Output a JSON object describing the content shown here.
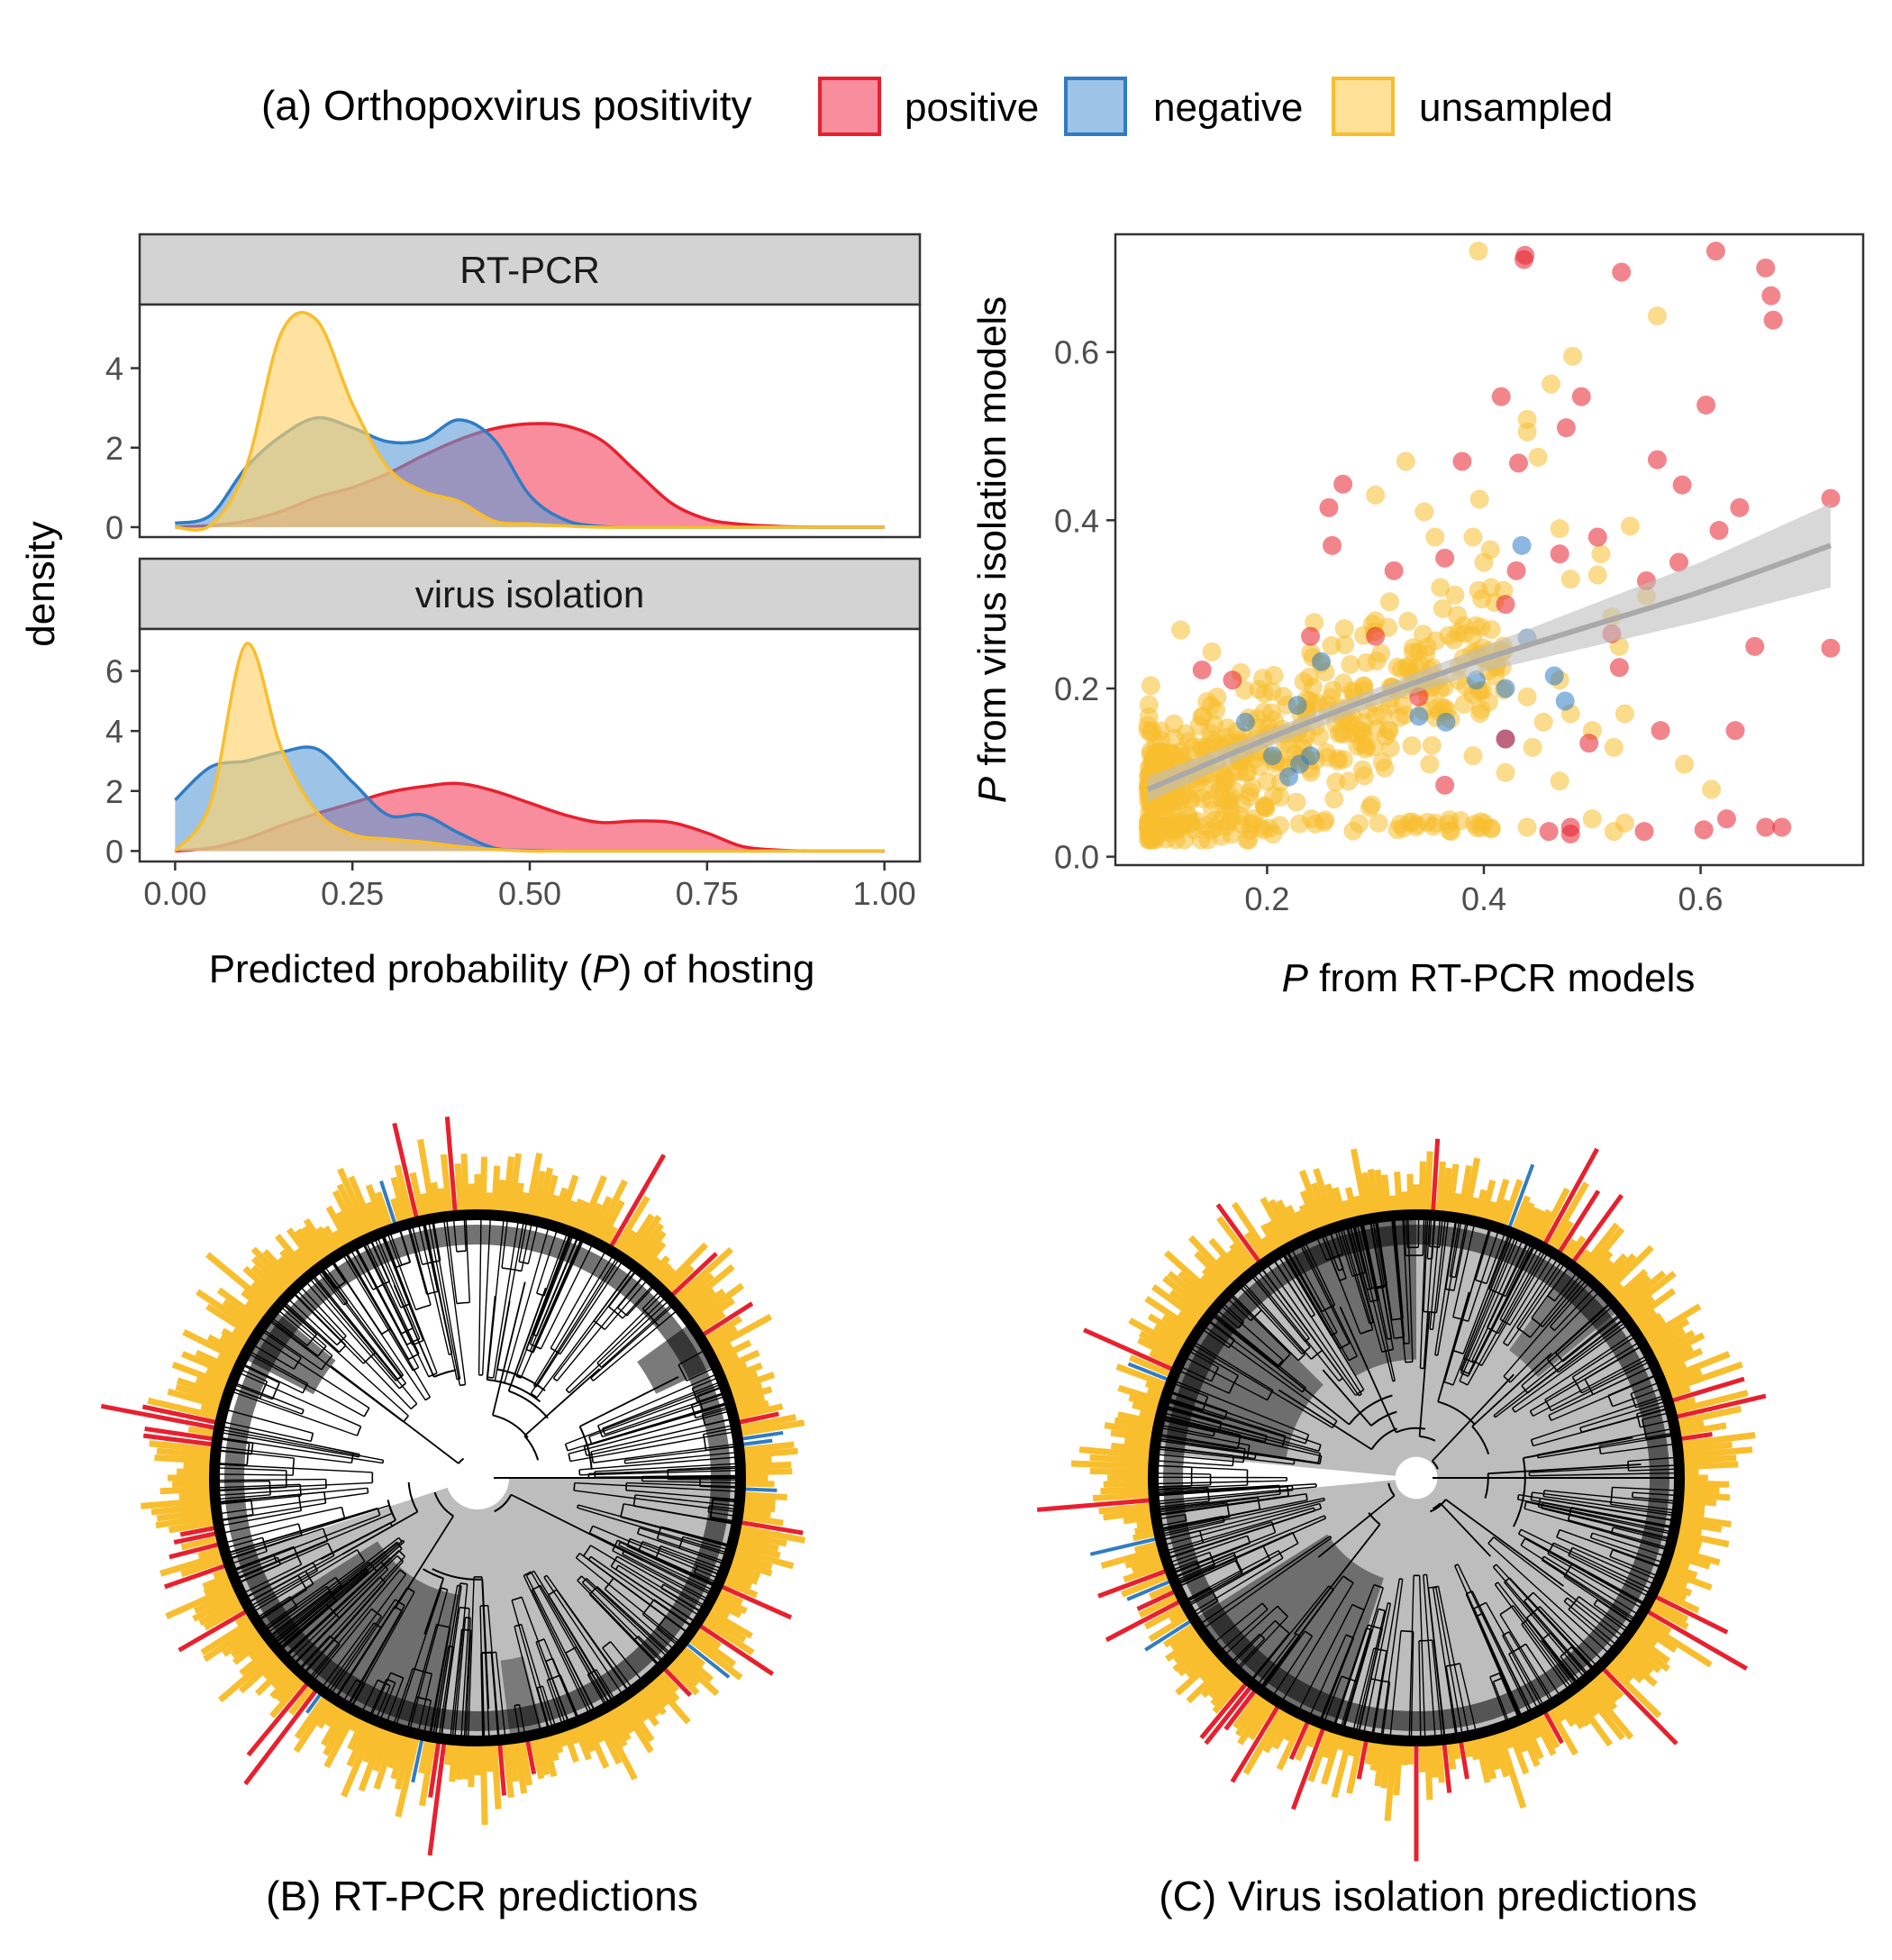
{
  "legend": {
    "title": "(a) Orthopoxvirus positivity",
    "items": [
      {
        "label": "positive",
        "fill": "#F4506A",
        "stroke": "#E8202E"
      },
      {
        "label": "negative",
        "fill": "#5B9BD5",
        "stroke": "#2F7CC4"
      },
      {
        "label": "unsampled",
        "fill": "#FFD36B",
        "stroke": "#F8BE2E"
      }
    ]
  },
  "colors": {
    "positive": "#E8202E",
    "negative": "#2F7CC4",
    "unsampled": "#F8BE2E",
    "smooth": "#A9A9A9",
    "ribbon": "#BEBEBE",
    "strip": "#D3D3D3"
  },
  "chart_data": [
    {
      "type": "area",
      "id": "density-facets",
      "xlabel_pre": "Predicted probability (",
      "xlabel_italic": "P",
      "xlabel_post": ") of hosting",
      "ylabel": "density",
      "xlim": [
        -0.05,
        1.05
      ],
      "xticks": [
        "0.00",
        "0.25",
        "0.50",
        "0.75",
        "1.00"
      ],
      "xtick_values": [
        0,
        0.25,
        0.5,
        0.75,
        1.0
      ],
      "facets": [
        {
          "strip": "RT-PCR",
          "ylim": [
            -0.25,
            5.6
          ],
          "yticks": [
            0,
            2,
            4
          ],
          "x": [
            0,
            0.05,
            0.1,
            0.15,
            0.2,
            0.25,
            0.3,
            0.35,
            0.4,
            0.45,
            0.5,
            0.55,
            0.6,
            0.65,
            0.7,
            0.75,
            0.8,
            0.85,
            0.9,
            0.95,
            1.0
          ],
          "series": [
            {
              "name": "positive",
              "values": [
                0.0,
                0.04,
                0.15,
                0.4,
                0.75,
                1.0,
                1.35,
                1.8,
                2.2,
                2.48,
                2.6,
                2.55,
                2.2,
                1.4,
                0.6,
                0.2,
                0.07,
                0.02,
                0.0,
                0.0,
                0.0
              ]
            },
            {
              "name": "negative",
              "values": [
                0.1,
                0.3,
                1.5,
                2.3,
                2.75,
                2.5,
                2.15,
                2.2,
                2.7,
                2.2,
                0.8,
                0.18,
                0.02,
                0.0,
                0.0,
                0.0,
                0.0,
                0.0,
                0.0,
                0.0,
                0.0
              ]
            },
            {
              "name": "unsampled",
              "values": [
                0.0,
                0.05,
                1.5,
                4.9,
                5.2,
                3.1,
                1.5,
                0.9,
                0.65,
                0.15,
                0.08,
                0.03,
                0.0,
                0.0,
                0.0,
                0.0,
                0.0,
                0.0,
                0.0,
                0.0,
                0.0
              ]
            }
          ]
        },
        {
          "strip": "virus isolation",
          "ylim": [
            -0.35,
            7.4
          ],
          "yticks": [
            0,
            2,
            4,
            6
          ],
          "x": [
            0,
            0.05,
            0.1,
            0.15,
            0.2,
            0.25,
            0.3,
            0.35,
            0.4,
            0.45,
            0.5,
            0.55,
            0.6,
            0.65,
            0.7,
            0.75,
            0.8,
            0.85,
            0.9,
            0.95,
            1.0
          ],
          "series": [
            {
              "name": "positive",
              "values": [
                0.0,
                0.1,
                0.4,
                0.85,
                1.25,
                1.6,
                1.95,
                2.15,
                2.25,
                2.0,
                1.6,
                1.2,
                0.95,
                1.0,
                0.95,
                0.6,
                0.15,
                0.03,
                0.0,
                0.0,
                0.0
              ]
            },
            {
              "name": "negative",
              "values": [
                1.7,
                2.8,
                3.0,
                3.3,
                3.4,
                2.3,
                1.2,
                1.2,
                0.6,
                0.1,
                0.02,
                0.0,
                0.0,
                0.0,
                0.0,
                0.0,
                0.0,
                0.0,
                0.0,
                0.0,
                0.0
              ]
            },
            {
              "name": "unsampled",
              "values": [
                0.0,
                1.6,
                6.9,
                3.4,
                1.3,
                0.55,
                0.4,
                0.3,
                0.15,
                0.05,
                0.0,
                0.0,
                0.0,
                0.0,
                0.0,
                0.0,
                0.0,
                0.0,
                0.0,
                0.0,
                0.0
              ]
            }
          ]
        }
      ]
    },
    {
      "type": "scatter",
      "id": "rtpcr-vs-isolation",
      "xlabel_italic": "P",
      "xlabel_post": " from RT-PCR models",
      "ylabel_italic": "P",
      "ylabel_post": " from virus isolation models",
      "xlim": [
        0.06,
        0.75
      ],
      "ylim": [
        -0.01,
        0.74
      ],
      "xticks": [
        0.2,
        0.4,
        0.6
      ],
      "yticks": [
        0.0,
        0.2,
        0.4,
        0.6
      ],
      "xtick_labels": [
        "0.2",
        "0.4",
        "0.6"
      ],
      "ytick_labels": [
        "0.0",
        "0.2",
        "0.4",
        "0.6"
      ],
      "smooth": {
        "x": [
          0.09,
          0.2,
          0.3,
          0.4,
          0.5,
          0.6,
          0.72
        ],
        "y": [
          0.08,
          0.14,
          0.19,
          0.235,
          0.275,
          0.315,
          0.37
        ],
        "lower": [
          0.065,
          0.13,
          0.18,
          0.22,
          0.25,
          0.28,
          0.32
        ],
        "upper": [
          0.095,
          0.15,
          0.2,
          0.25,
          0.3,
          0.35,
          0.42
        ]
      },
      "positive": [
        [
          0.437,
          0.71
        ],
        [
          0.438,
          0.715
        ],
        [
          0.614,
          0.72
        ],
        [
          0.527,
          0.695
        ],
        [
          0.66,
          0.7
        ],
        [
          0.665,
          0.667
        ],
        [
          0.667,
          0.638
        ],
        [
          0.416,
          0.547
        ],
        [
          0.49,
          0.547
        ],
        [
          0.605,
          0.537
        ],
        [
          0.476,
          0.51
        ],
        [
          0.432,
          0.468
        ],
        [
          0.38,
          0.47
        ],
        [
          0.56,
          0.472
        ],
        [
          0.583,
          0.442
        ],
        [
          0.505,
          0.38
        ],
        [
          0.27,
          0.443
        ],
        [
          0.257,
          0.415
        ],
        [
          0.26,
          0.37
        ],
        [
          0.317,
          0.34
        ],
        [
          0.47,
          0.36
        ],
        [
          0.58,
          0.35
        ],
        [
          0.636,
          0.415
        ],
        [
          0.617,
          0.388
        ],
        [
          0.55,
          0.328
        ],
        [
          0.42,
          0.3
        ],
        [
          0.72,
          0.426
        ],
        [
          0.364,
          0.355
        ],
        [
          0.3,
          0.262
        ],
        [
          0.43,
          0.34
        ],
        [
          0.34,
          0.19
        ],
        [
          0.14,
          0.222
        ],
        [
          0.168,
          0.21
        ],
        [
          0.24,
          0.262
        ],
        [
          0.518,
          0.265
        ],
        [
          0.525,
          0.225
        ],
        [
          0.65,
          0.25
        ],
        [
          0.72,
          0.248
        ],
        [
          0.364,
          0.085
        ],
        [
          0.42,
          0.14
        ],
        [
          0.497,
          0.135
        ],
        [
          0.632,
          0.15
        ],
        [
          0.563,
          0.15
        ],
        [
          0.46,
          0.03
        ],
        [
          0.48,
          0.027
        ],
        [
          0.48,
          0.035
        ],
        [
          0.548,
          0.03
        ],
        [
          0.603,
          0.032
        ],
        [
          0.624,
          0.045
        ],
        [
          0.66,
          0.035
        ],
        [
          0.675,
          0.035
        ]
      ],
      "negative": [
        [
          0.435,
          0.37
        ],
        [
          0.44,
          0.26
        ],
        [
          0.42,
          0.2
        ],
        [
          0.393,
          0.21
        ],
        [
          0.465,
          0.215
        ],
        [
          0.475,
          0.185
        ],
        [
          0.34,
          0.167
        ],
        [
          0.365,
          0.16
        ],
        [
          0.25,
          0.232
        ],
        [
          0.228,
          0.18
        ],
        [
          0.24,
          0.12
        ],
        [
          0.205,
          0.12
        ],
        [
          0.18,
          0.16
        ],
        [
          0.22,
          0.095
        ],
        [
          0.23,
          0.11
        ],
        [
          0.42,
          0.14
        ]
      ],
      "unsampled_explicit": [
        [
          0.395,
          0.72
        ],
        [
          0.56,
          0.643
        ],
        [
          0.482,
          0.595
        ],
        [
          0.462,
          0.562
        ],
        [
          0.44,
          0.52
        ],
        [
          0.44,
          0.505
        ],
        [
          0.328,
          0.47
        ],
        [
          0.45,
          0.475
        ],
        [
          0.3,
          0.43
        ],
        [
          0.396,
          0.425
        ],
        [
          0.345,
          0.41
        ],
        [
          0.355,
          0.38
        ],
        [
          0.47,
          0.39
        ],
        [
          0.535,
          0.393
        ],
        [
          0.39,
          0.38
        ],
        [
          0.406,
          0.365
        ],
        [
          0.4,
          0.35
        ],
        [
          0.508,
          0.36
        ],
        [
          0.525,
          0.25
        ],
        [
          0.55,
          0.31
        ],
        [
          0.48,
          0.33
        ],
        [
          0.505,
          0.335
        ],
        [
          0.518,
          0.285
        ],
        [
          0.36,
          0.32
        ],
        [
          0.362,
          0.295
        ],
        [
          0.33,
          0.28
        ],
        [
          0.585,
          0.11
        ],
        [
          0.61,
          0.08
        ],
        [
          0.44,
          0.19
        ],
        [
          0.455,
          0.16
        ],
        [
          0.48,
          0.17
        ],
        [
          0.47,
          0.21
        ],
        [
          0.445,
          0.13
        ],
        [
          0.47,
          0.09
        ],
        [
          0.52,
          0.13
        ],
        [
          0.5,
          0.15
        ],
        [
          0.53,
          0.17
        ],
        [
          0.39,
          0.12
        ],
        [
          0.42,
          0.1
        ],
        [
          0.35,
          0.11
        ],
        [
          0.52,
          0.03
        ],
        [
          0.53,
          0.04
        ],
        [
          0.5,
          0.045
        ],
        [
          0.44,
          0.035
        ],
        [
          0.4,
          0.04
        ],
        [
          0.37,
          0.03
        ]
      ],
      "unsampled_cloud": {
        "count": 520,
        "seed": 7
      }
    }
  ],
  "trees": [
    {
      "id": "tree-b",
      "caption": "(B) RT-PCR predictions",
      "variant": "rtpcr",
      "seed": 11
    },
    {
      "id": "tree-c",
      "caption": "(C) Virus isolation predictions",
      "variant": "isolation",
      "seed": 23
    }
  ]
}
